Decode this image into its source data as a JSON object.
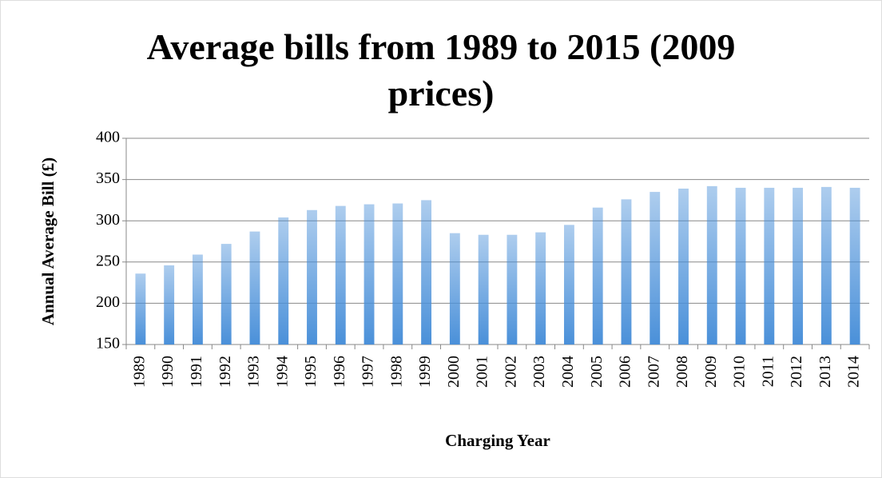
{
  "chart_data": {
    "type": "bar",
    "title": "Average bills from 1989 to 2015 (2009 prices)",
    "x_label": "Charging Year",
    "y_label": "Annual Average Bill (£)",
    "categories": [
      "1989",
      "1990",
      "1991",
      "1992",
      "1993",
      "1994",
      "1995",
      "1996",
      "1997",
      "1998",
      "1999",
      "2000",
      "2001",
      "2002",
      "2003",
      "2004",
      "2005",
      "2006",
      "2007",
      "2008",
      "2009",
      "2010",
      "2011",
      "2012",
      "2013",
      "2014"
    ],
    "values": [
      236,
      246,
      259,
      272,
      287,
      304,
      313,
      318,
      320,
      321,
      325,
      285,
      283,
      283,
      286,
      295,
      316,
      326,
      335,
      339,
      342,
      340,
      340,
      340,
      341,
      340
    ],
    "color": "#4a90d9",
    "ylim": [
      150,
      400
    ],
    "yticks": [
      150,
      200,
      250,
      300,
      350,
      400
    ],
    "grid": true
  }
}
